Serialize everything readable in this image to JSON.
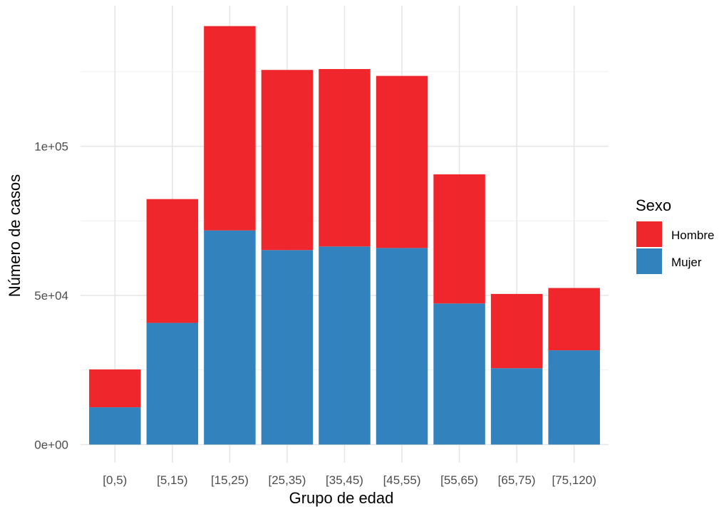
{
  "chart_data": {
    "type": "bar",
    "stacked": true,
    "title": "",
    "xlabel": "Grupo de edad",
    "ylabel": "Número de casos",
    "categories": [
      "[0,5)",
      "[5,15)",
      "[15,25)",
      "[25,35)",
      "[35,45)",
      "[45,55)",
      "[55,65)",
      "[65,75)",
      "[75,120)"
    ],
    "series": [
      {
        "name": "Mujer",
        "color": "#3182bd",
        "values": [
          12500,
          40800,
          71800,
          65200,
          66400,
          65900,
          47300,
          25600,
          31600
        ]
      },
      {
        "name": "Hombre",
        "color": "#ef272d",
        "values": [
          12700,
          41500,
          68500,
          60400,
          59500,
          57700,
          43300,
          24900,
          20900
        ]
      }
    ],
    "ylim": [
      0,
      140000
    ],
    "yticks": [
      0,
      50000,
      100000
    ],
    "ytick_labels": [
      "0e+00",
      "5e+04",
      "1e+05"
    ],
    "grid": true,
    "legend": {
      "title": "Sexo",
      "position": "right",
      "entries": [
        {
          "label": "Hombre",
          "color": "#ef272d"
        },
        {
          "label": "Mujer",
          "color": "#3182bd"
        }
      ]
    }
  }
}
